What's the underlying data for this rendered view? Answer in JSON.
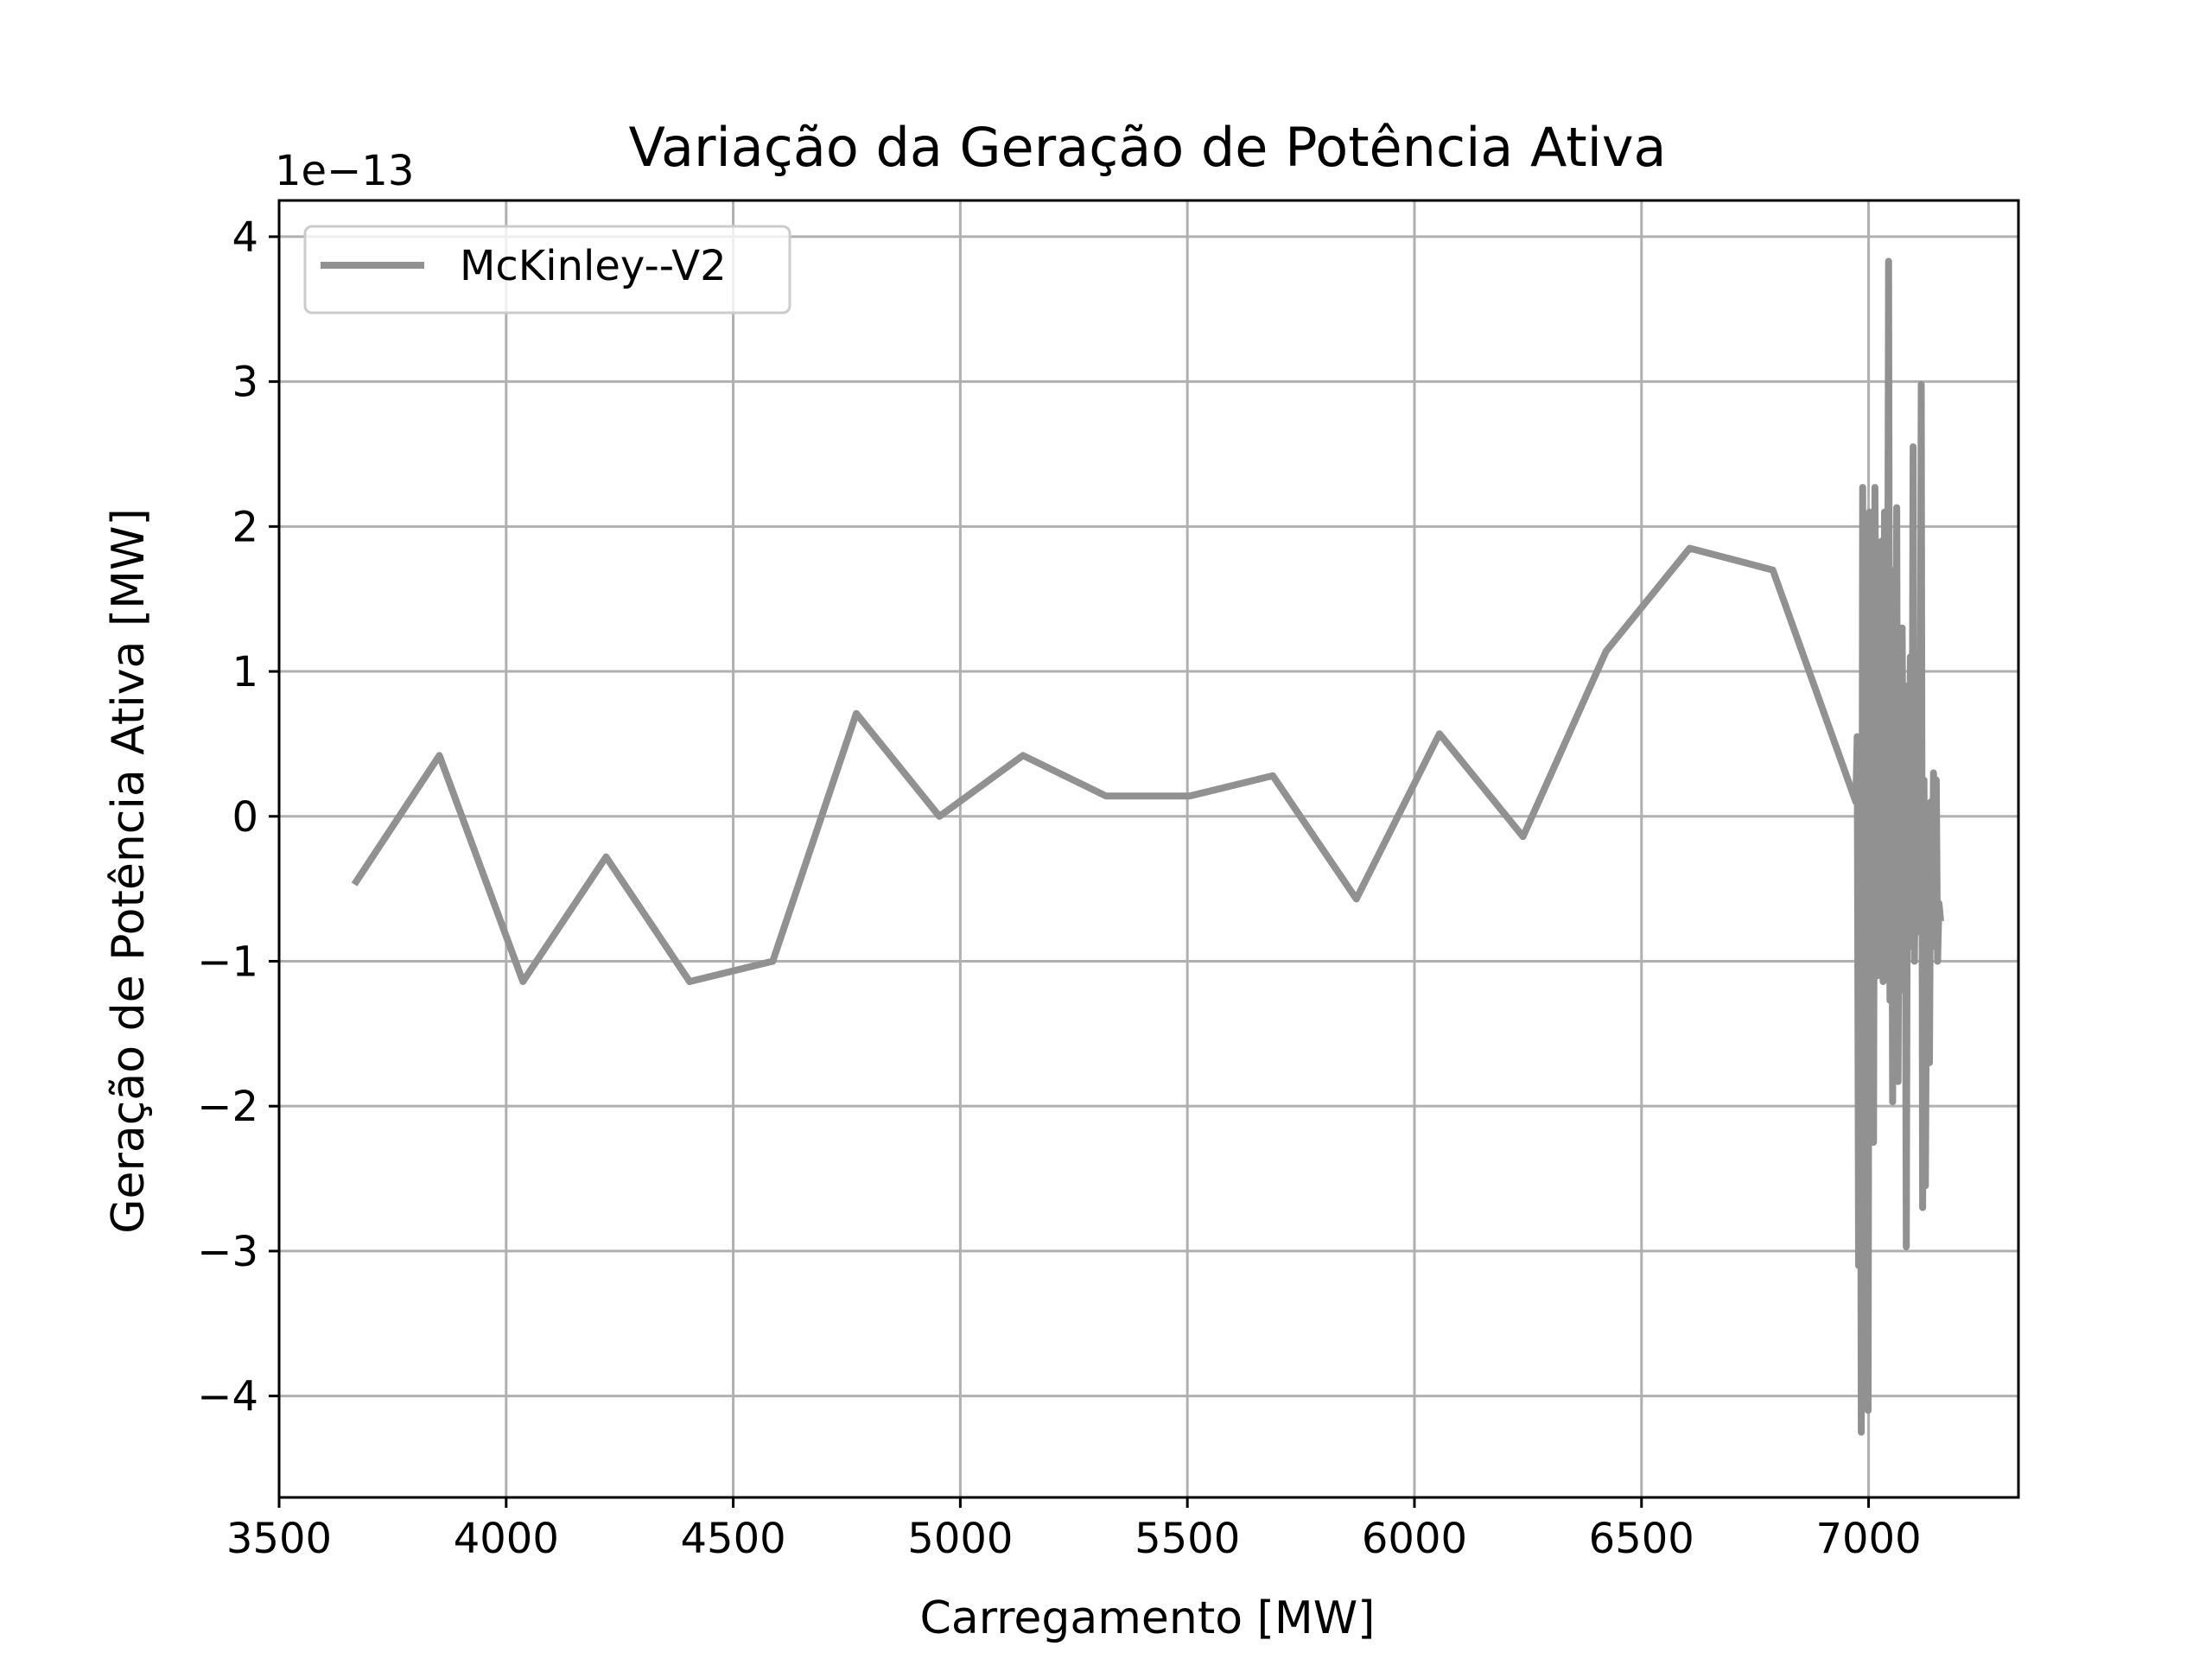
{
  "chart_data": {
    "type": "line",
    "title": "Variação da Geração de Potência Ativa",
    "xlabel": "Carregamento [MW]",
    "ylabel": "Geração de Potência Ativa [MW]",
    "y_offset_label": "1e−13",
    "xlim": [
      3500,
      7330
    ],
    "ylim": [
      -4.7,
      4.25
    ],
    "x_ticks": [
      3500,
      4000,
      4500,
      5000,
      5500,
      6000,
      6500,
      7000
    ],
    "x_tick_labels": [
      "3500",
      "4000",
      "4500",
      "5000",
      "5500",
      "6000",
      "6500",
      "7000"
    ],
    "y_ticks": [
      4,
      3,
      2,
      1,
      0,
      -1,
      -2,
      -3,
      -4
    ],
    "y_tick_labels": [
      "4",
      "3",
      "2",
      "1",
      "0",
      "−1",
      "−2",
      "−3",
      "−4"
    ],
    "grid": true,
    "legend_position": "upper-left",
    "series": [
      {
        "name": "McKinley--V2",
        "color": "#919191",
        "x": [
          3670,
          3853,
          4037,
          4220,
          4404,
          4587,
          4771,
          4954,
          5138,
          5321,
          5505,
          5688,
          5872,
          6055,
          6239,
          6422,
          6606,
          6789,
          6972,
          6975,
          6978,
          6981,
          6984,
          6987,
          6990,
          6993,
          6996,
          6999,
          7002,
          7005,
          7008,
          7011,
          7014,
          7017,
          7020,
          7023,
          7026,
          7029,
          7032,
          7035,
          7038,
          7041,
          7044,
          7047,
          7050,
          7053,
          7056,
          7059,
          7062,
          7065,
          7068,
          7071,
          7074,
          7077,
          7080,
          7083,
          7086,
          7089,
          7092,
          7095,
          7098,
          7101,
          7104,
          7107,
          7110,
          7113,
          7116,
          7119,
          7122,
          7125,
          7128,
          7131,
          7134,
          7137,
          7140,
          7143,
          7146,
          7149,
          7152,
          7155,
          7158
        ],
        "y": [
          -0.45,
          0.42,
          -1.14,
          -0.28,
          -1.14,
          -1.0,
          0.71,
          0.0,
          0.42,
          0.14,
          0.14,
          0.28,
          -0.57,
          0.57,
          -0.14,
          1.14,
          1.85,
          1.7,
          0.1,
          0.55,
          -3.1,
          0.4,
          -4.25,
          2.27,
          -0.5,
          -2.6,
          1.4,
          -4.1,
          2.1,
          -0.9,
          1.3,
          -2.25,
          2.27,
          0.4,
          -1.1,
          1.0,
          -0.6,
          1.9,
          -1.14,
          2.1,
          0.3,
          -0.3,
          3.83,
          -1.27,
          1.7,
          -1.97,
          0.6,
          -0.8,
          2.13,
          -1.83,
          0.8,
          -1.2,
          1.3,
          -0.5,
          0.9,
          -2.97,
          0.7,
          -0.6,
          1.1,
          -0.9,
          2.55,
          -1.0,
          0.2,
          -0.7,
          0.3,
          -0.8,
          2.98,
          -2.7,
          0.25,
          -2.55,
          -0.75,
          0.05,
          -1.7,
          0.1,
          -0.9,
          0.3,
          -0.5,
          0.25,
          -1.0,
          -0.6,
          -0.7
        ]
      }
    ]
  }
}
